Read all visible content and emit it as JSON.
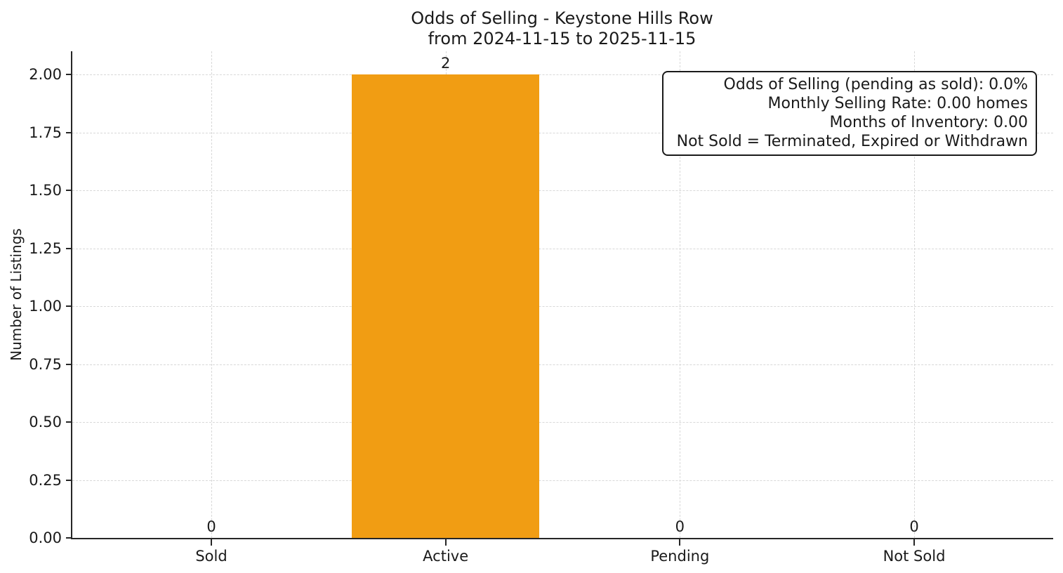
{
  "chart_data": {
    "type": "bar",
    "title": "Odds of Selling - Keystone Hills Row",
    "subtitle": "from 2024-11-15 to 2025-11-15",
    "ylabel": "Number of Listings",
    "categories": [
      "Sold",
      "Active",
      "Pending",
      "Not Sold"
    ],
    "values": [
      0,
      2,
      0,
      0
    ],
    "bar_value_labels": [
      "0",
      "2",
      "0",
      "0"
    ],
    "yticks": [
      "0.00",
      "0.25",
      "0.50",
      "0.75",
      "1.00",
      "1.25",
      "1.50",
      "1.75",
      "2.00"
    ],
    "ylim": [
      0,
      2.1
    ],
    "grid": "dashed-both-axes",
    "legend_position": "none",
    "bar_color": "#F19D13",
    "axis_color": "#262626",
    "grid_color": "#d8d8d8",
    "annotation_lines": [
      "Odds of Selling (pending as sold): 0.0%",
      "Monthly Selling Rate: 0.00 homes",
      "Months of Inventory: 0.00",
      "Not Sold = Terminated, Expired or Withdrawn"
    ]
  }
}
